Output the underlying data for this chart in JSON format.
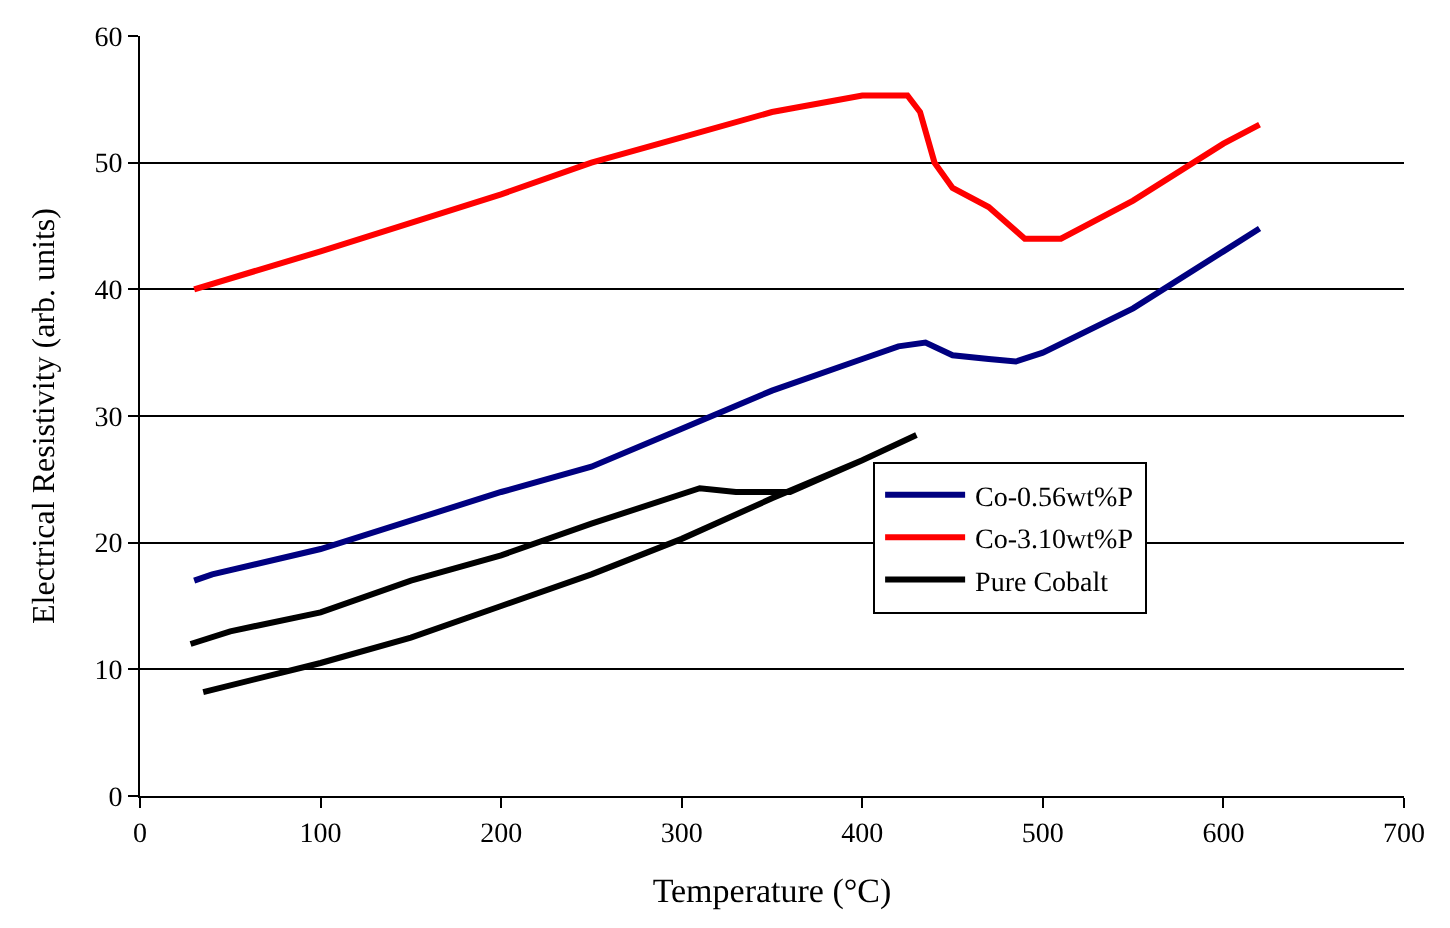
{
  "chart_data": {
    "type": "line",
    "xlabel": "Temperature (°C)",
    "ylabel": "Electrical Resistivity (arb. units)",
    "xlim": [
      0,
      700
    ],
    "xticks": [
      0,
      100,
      200,
      300,
      400,
      500,
      600,
      700
    ],
    "ylim": [
      0,
      60
    ],
    "yticks": [
      0,
      10,
      20,
      30,
      40,
      50,
      60
    ],
    "grid": "y",
    "legend": "right",
    "marker": "none",
    "line_style": "solid",
    "series": [
      {
        "name": "Co-0.56wt%P",
        "color": "#000080",
        "x": [
          30,
          40,
          100,
          200,
          250,
          300,
          350,
          400,
          420,
          435,
          450,
          470,
          485,
          500,
          550,
          600,
          620
        ],
        "values": [
          17,
          17.5,
          19.5,
          24,
          26,
          29,
          32,
          34.5,
          35.5,
          35.8,
          34.8,
          34.5,
          34.3,
          35,
          38.5,
          43,
          44.8
        ]
      },
      {
        "name": "Co-3.10wt%P",
        "color": "#ff0000",
        "x": [
          30,
          100,
          200,
          250,
          300,
          350,
          400,
          425,
          432,
          440,
          450,
          470,
          490,
          510,
          550,
          600,
          620
        ],
        "values": [
          40,
          43,
          47.5,
          50,
          52,
          54,
          55.3,
          55.3,
          54,
          50,
          48,
          46.5,
          44,
          44,
          47,
          51.5,
          53
        ]
      },
      {
        "name": "Pure Cobalt",
        "color": "#000000",
        "x": [
          35,
          100,
          150,
          200,
          250,
          300,
          350,
          400,
          430,
          400,
          360,
          330,
          310,
          250,
          200,
          150,
          100,
          50,
          28
        ],
        "values": [
          8.2,
          10.5,
          12.5,
          15,
          17.5,
          20.3,
          23.5,
          26.5,
          28.5,
          26.5,
          24,
          24,
          24.3,
          21.5,
          19,
          17,
          14.5,
          13,
          12
        ]
      }
    ]
  }
}
